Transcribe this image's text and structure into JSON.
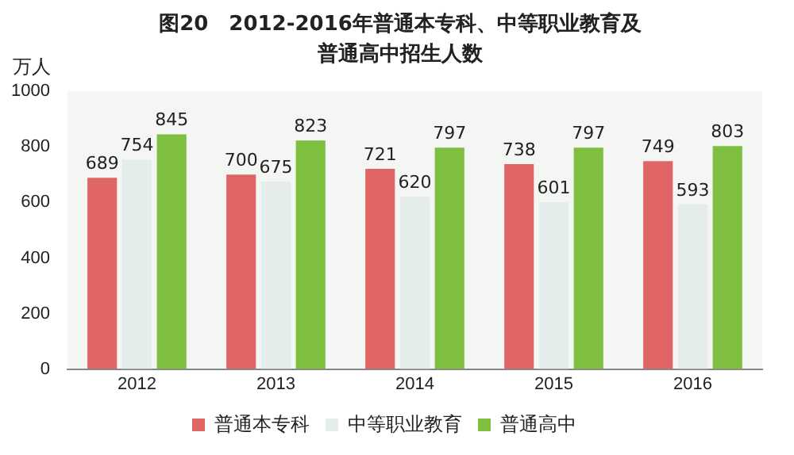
{
  "chart_data": {
    "type": "bar",
    "title": "图20　2012-2016年普通本专科、中等职业教育及普通高中招生人数",
    "ylabel": "万人",
    "categories": [
      "2012",
      "2013",
      "2014",
      "2015",
      "2016"
    ],
    "series": [
      {
        "name": "普通本专科",
        "color": "#e06666",
        "values": [
          689,
          700,
          721,
          738,
          749
        ]
      },
      {
        "name": "中等职业教育",
        "color": "#e4ecec",
        "values": [
          754,
          675,
          620,
          601,
          593
        ]
      },
      {
        "name": "普通高中",
        "color": "#7fbf3f",
        "values": [
          845,
          823,
          797,
          797,
          803
        ]
      }
    ],
    "ylim": [
      0,
      1000
    ],
    "yticks": [
      0,
      200,
      400,
      600,
      800,
      1000
    ],
    "grid": false,
    "legend": "bottom",
    "data_labels": true
  }
}
